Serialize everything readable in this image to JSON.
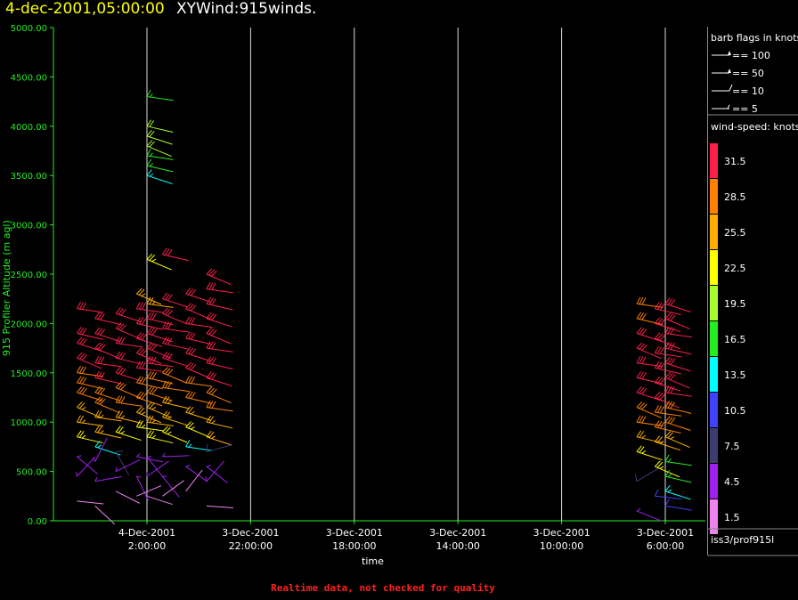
{
  "title": {
    "date": "4-dec-2001,05:00:00",
    "name": "XYWind:915winds."
  },
  "footer": "Realtime data, not checked for quality",
  "legend": {
    "barb_title": "barb flags in knots",
    "barbs": [
      {
        "label": "== 100",
        "kind": "pennant"
      },
      {
        "label": "== 50",
        "kind": "pennant"
      },
      {
        "label": "== 10",
        "kind": "full"
      },
      {
        "label": "== 5",
        "kind": "half"
      }
    ],
    "speed_title": "wind-speed: knots",
    "scale": [
      {
        "label": "31.5",
        "color": "#ff1f4b"
      },
      {
        "label": "28.5",
        "color": "#ff8000"
      },
      {
        "label": "25.5",
        "color": "#ffae00"
      },
      {
        "label": "22.5",
        "color": "#ffff00"
      },
      {
        "label": "19.5",
        "color": "#aaff2a"
      },
      {
        "label": "16.5",
        "color": "#22ee22"
      },
      {
        "label": "13.5",
        "color": "#00ffff"
      },
      {
        "label": "10.5",
        "color": "#4040ff"
      },
      {
        "label": "7.5",
        "color": "#3c3c6e"
      },
      {
        "label": "4.5",
        "color": "#a020f0"
      },
      {
        "label": "1.5",
        "color": "#ee82ee"
      }
    ],
    "source": "iss3/prof915l"
  },
  "chart_data": {
    "type": "scatter",
    "title": "XYWind:915winds.",
    "xlabel": "time",
    "ylabel": "915 Profiler Altitude (m agl)",
    "ylim": [
      0,
      5000
    ],
    "yticks": [
      "0.00",
      "500.00",
      "1000.00",
      "1500.00",
      "2000.00",
      "2500.00",
      "3000.00",
      "3500.00",
      "4000.00",
      "4500.00",
      "5000.00"
    ],
    "xticks": [
      {
        "date": "4-Dec-2001",
        "time": "2:00:00"
      },
      {
        "date": "3-Dec-2001",
        "time": "22:00:00"
      },
      {
        "date": "3-Dec-2001",
        "time": "18:00:00"
      },
      {
        "date": "3-Dec-2001",
        "time": "14:00:00"
      },
      {
        "date": "3-Dec-2001",
        "time": "10:00:00"
      },
      {
        "date": "3-Dec-2001",
        "time": "6:00:00"
      }
    ],
    "x_direction": "time decreasing to the right",
    "grid": "vertical lines at x ticks",
    "wind_columns": [
      {
        "hours_after_tick0": 2.7,
        "levels": [
          {
            "alt": 2150,
            "spd": 31.5
          },
          {
            "alt": 1900,
            "spd": 31.5
          },
          {
            "alt": 1800,
            "spd": 31.5
          },
          {
            "alt": 1650,
            "spd": 31.5
          },
          {
            "alt": 1500,
            "spd": 28.5
          },
          {
            "alt": 1400,
            "spd": 28.5
          },
          {
            "alt": 1300,
            "spd": 28.5
          },
          {
            "alt": 1150,
            "spd": 25.5
          },
          {
            "alt": 1000,
            "spd": 25.5
          },
          {
            "alt": 850,
            "spd": 22.5
          },
          {
            "alt": 650,
            "spd": 4.5
          },
          {
            "alt": 450,
            "spd": 4.5
          },
          {
            "alt": 200,
            "spd": 1.5
          }
        ]
      },
      {
        "hours_after_tick0": 2.0,
        "levels": [
          {
            "alt": 2050,
            "spd": 31.5
          },
          {
            "alt": 1900,
            "spd": 31.5
          },
          {
            "alt": 1750,
            "spd": 31.5
          },
          {
            "alt": 1600,
            "spd": 31.5
          },
          {
            "alt": 1450,
            "spd": 31.5
          },
          {
            "alt": 1300,
            "spd": 28.5
          },
          {
            "alt": 1200,
            "spd": 28.5
          },
          {
            "alt": 1050,
            "spd": 25.5
          },
          {
            "alt": 900,
            "spd": 25.5
          },
          {
            "alt": 750,
            "spd": 13.5
          },
          {
            "alt": 600,
            "spd": 4.5
          },
          {
            "alt": 400,
            "spd": 4.5
          },
          {
            "alt": 150,
            "spd": 1.5
          }
        ]
      },
      {
        "hours_after_tick0": 1.2,
        "levels": [
          {
            "alt": 2100,
            "spd": 31.5
          },
          {
            "alt": 1950,
            "spd": 31.5
          },
          {
            "alt": 1800,
            "spd": 31.5
          },
          {
            "alt": 1650,
            "spd": 31.5
          },
          {
            "alt": 1500,
            "spd": 31.5
          },
          {
            "alt": 1350,
            "spd": 28.5
          },
          {
            "alt": 1200,
            "spd": 28.5
          },
          {
            "alt": 1050,
            "spd": 25.5
          },
          {
            "alt": 900,
            "spd": 22.5
          },
          {
            "alt": 700,
            "spd": 7.5
          },
          {
            "alt": 500,
            "spd": 4.5
          },
          {
            "alt": 300,
            "spd": 1.5
          }
        ]
      },
      {
        "hours_after_tick0": 0.4,
        "levels": [
          {
            "alt": 2300,
            "spd": 25.5
          },
          {
            "alt": 2150,
            "spd": 31.5
          },
          {
            "alt": 2000,
            "spd": 31.5
          },
          {
            "alt": 1850,
            "spd": 31.5
          },
          {
            "alt": 1700,
            "spd": 31.5
          },
          {
            "alt": 1550,
            "spd": 31.5
          },
          {
            "alt": 1400,
            "spd": 28.5
          },
          {
            "alt": 1250,
            "spd": 28.5
          },
          {
            "alt": 1100,
            "spd": 25.5
          },
          {
            "alt": 950,
            "spd": 22.5
          },
          {
            "alt": 650,
            "spd": 4.5
          },
          {
            "alt": 450,
            "spd": 4.5
          },
          {
            "alt": 250,
            "spd": 1.5
          }
        ]
      },
      {
        "hours_after_tick0": 0.0,
        "levels": [
          {
            "alt": 4300,
            "spd": 16.5
          },
          {
            "alt": 4000,
            "spd": 19.5
          },
          {
            "alt": 3900,
            "spd": 19.5
          },
          {
            "alt": 3800,
            "spd": 19.5
          },
          {
            "alt": 3700,
            "spd": 16.5
          },
          {
            "alt": 3600,
            "spd": 16.5
          },
          {
            "alt": 3500,
            "spd": 13.5
          },
          {
            "alt": 2650,
            "spd": 22.5
          },
          {
            "alt": 2200,
            "spd": 25.5
          },
          {
            "alt": 2050,
            "spd": 31.5
          },
          {
            "alt": 1900,
            "spd": 31.5
          },
          {
            "alt": 1750,
            "spd": 31.5
          },
          {
            "alt": 1600,
            "spd": 31.5
          },
          {
            "alt": 1450,
            "spd": 28.5
          },
          {
            "alt": 1300,
            "spd": 28.5
          },
          {
            "alt": 1150,
            "spd": 25.5
          },
          {
            "alt": 1000,
            "spd": 25.5
          },
          {
            "alt": 850,
            "spd": 22.5
          },
          {
            "alt": 650,
            "spd": 4.5
          },
          {
            "alt": 450,
            "spd": 4.5
          },
          {
            "alt": 250,
            "spd": 1.5
          }
        ]
      },
      {
        "hours_after_tick0": -0.6,
        "levels": [
          {
            "alt": 2700,
            "spd": 31.5
          },
          {
            "alt": 2250,
            "spd": 31.5
          },
          {
            "alt": 2100,
            "spd": 31.5
          },
          {
            "alt": 1950,
            "spd": 31.5
          },
          {
            "alt": 1800,
            "spd": 31.5
          },
          {
            "alt": 1650,
            "spd": 31.5
          },
          {
            "alt": 1500,
            "spd": 28.5
          },
          {
            "alt": 1350,
            "spd": 28.5
          },
          {
            "alt": 1200,
            "spd": 25.5
          },
          {
            "alt": 1050,
            "spd": 25.5
          },
          {
            "alt": 900,
            "spd": 22.5
          },
          {
            "alt": 650,
            "spd": 4.5
          },
          {
            "alt": 450,
            "spd": 4.5
          },
          {
            "alt": 250,
            "spd": 1.5
          }
        ]
      },
      {
        "hours_after_tick0": -1.5,
        "levels": [
          {
            "alt": 2300,
            "spd": 31.5
          },
          {
            "alt": 2150,
            "spd": 31.5
          },
          {
            "alt": 2000,
            "spd": 31.5
          },
          {
            "alt": 1850,
            "spd": 31.5
          },
          {
            "alt": 1700,
            "spd": 31.5
          },
          {
            "alt": 1550,
            "spd": 31.5
          },
          {
            "alt": 1400,
            "spd": 28.5
          },
          {
            "alt": 1250,
            "spd": 28.5
          },
          {
            "alt": 1100,
            "spd": 25.5
          },
          {
            "alt": 950,
            "spd": 22.5
          },
          {
            "alt": 750,
            "spd": 13.5
          },
          {
            "alt": 550,
            "spd": 4.5
          },
          {
            "alt": 300,
            "spd": 1.5
          }
        ]
      },
      {
        "hours_after_tick0": -2.3,
        "levels": [
          {
            "alt": 2500,
            "spd": 31.5
          },
          {
            "alt": 2350,
            "spd": 31.5
          },
          {
            "alt": 2200,
            "spd": 31.5
          },
          {
            "alt": 2050,
            "spd": 31.5
          },
          {
            "alt": 1900,
            "spd": 31.5
          },
          {
            "alt": 1750,
            "spd": 31.5
          },
          {
            "alt": 1600,
            "spd": 31.5
          },
          {
            "alt": 1450,
            "spd": 31.5
          },
          {
            "alt": 1300,
            "spd": 28.5
          },
          {
            "alt": 1150,
            "spd": 28.5
          },
          {
            "alt": 1000,
            "spd": 25.5
          },
          {
            "alt": 850,
            "spd": 25.5
          },
          {
            "alt": 700,
            "spd": 7.5
          },
          {
            "alt": 550,
            "spd": 4.5
          },
          {
            "alt": 400,
            "spd": 4.5
          },
          {
            "alt": 150,
            "spd": 1.5
          }
        ]
      },
      {
        "hours_after_tick0": -18.9,
        "levels": [
          {
            "alt": 2200,
            "spd": 28.5
          },
          {
            "alt": 2050,
            "spd": 28.5
          },
          {
            "alt": 1900,
            "spd": 31.5
          },
          {
            "alt": 1750,
            "spd": 31.5
          },
          {
            "alt": 1600,
            "spd": 31.5
          },
          {
            "alt": 1450,
            "spd": 31.5
          },
          {
            "alt": 1300,
            "spd": 31.5
          },
          {
            "alt": 1150,
            "spd": 28.5
          },
          {
            "alt": 1000,
            "spd": 28.5
          },
          {
            "alt": 850,
            "spd": 25.5
          },
          {
            "alt": 700,
            "spd": 22.5
          },
          {
            "alt": 400,
            "spd": 7.5
          },
          {
            "alt": 100,
            "spd": 4.5
          }
        ]
      },
      {
        "hours_after_tick0": -19.6,
        "levels": [
          {
            "alt": 2150,
            "spd": 31.5
          },
          {
            "alt": 2000,
            "spd": 31.5
          },
          {
            "alt": 1850,
            "spd": 31.5
          },
          {
            "alt": 1700,
            "spd": 31.5
          },
          {
            "alt": 1550,
            "spd": 31.5
          },
          {
            "alt": 1400,
            "spd": 31.5
          },
          {
            "alt": 1250,
            "spd": 31.5
          },
          {
            "alt": 1100,
            "spd": 28.5
          },
          {
            "alt": 950,
            "spd": 28.5
          },
          {
            "alt": 800,
            "spd": 25.5
          },
          {
            "alt": 550,
            "spd": 22.5
          },
          {
            "alt": 250,
            "spd": 10.5
          }
        ]
      },
      {
        "hours_after_tick0": -20.0,
        "levels": [
          {
            "alt": 2200,
            "spd": 31.5
          },
          {
            "alt": 2050,
            "spd": 31.5
          },
          {
            "alt": 1900,
            "spd": 31.5
          },
          {
            "alt": 1750,
            "spd": 31.5
          },
          {
            "alt": 1600,
            "spd": 31.5
          },
          {
            "alt": 1450,
            "spd": 31.5
          },
          {
            "alt": 1300,
            "spd": 31.5
          },
          {
            "alt": 1150,
            "spd": 28.5
          },
          {
            "alt": 1000,
            "spd": 28.5
          },
          {
            "alt": 850,
            "spd": 25.5
          },
          {
            "alt": 600,
            "spd": 16.5
          },
          {
            "alt": 450,
            "spd": 16.5
          },
          {
            "alt": 300,
            "spd": 13.5
          },
          {
            "alt": 150,
            "spd": 10.5
          }
        ]
      }
    ]
  }
}
